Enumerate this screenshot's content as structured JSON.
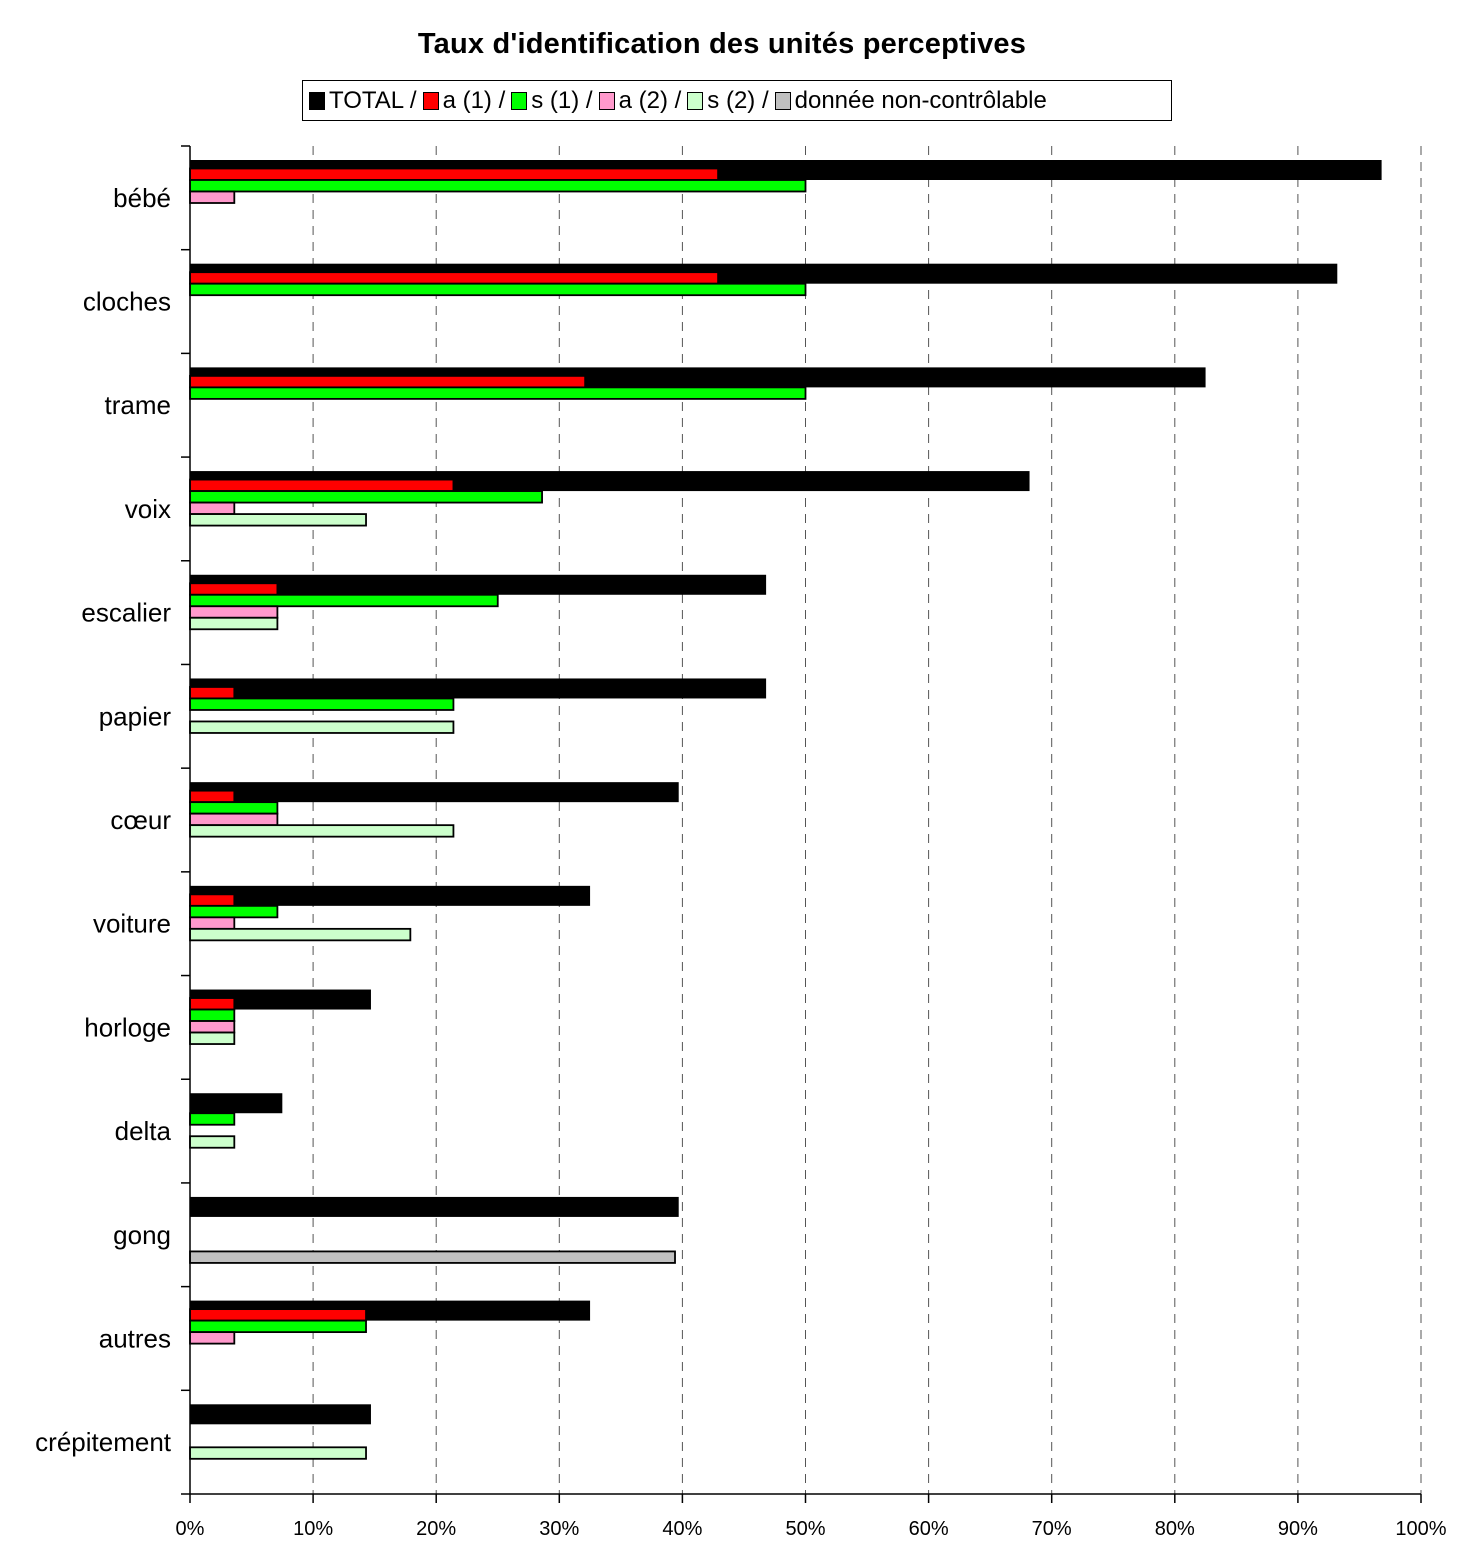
{
  "chart_data": {
    "type": "bar",
    "orientation": "horizontal",
    "title": "Taux d'identification des unités perceptives",
    "legend": {
      "placement": "top",
      "entries": [
        "TOTAL /",
        "a (1) /",
        "s (1) /",
        "a (2) /",
        "s (2) /",
        "donnée non-contrôlable"
      ]
    },
    "categories": [
      "bébé",
      "cloches",
      "trame",
      "voix",
      "escalier",
      "papier",
      "cœur",
      "voiture",
      "horloge",
      "delta",
      "gong",
      "autres",
      "crépitement"
    ],
    "series": [
      {
        "name": "TOTAL",
        "color": "#000000",
        "values": [
          96.8,
          93.2,
          82.5,
          68.2,
          46.8,
          46.8,
          39.7,
          32.5,
          14.7,
          7.5,
          39.7,
          32.5,
          14.7
        ]
      },
      {
        "name": "a (1)",
        "color": "#ff0000",
        "values": [
          42.9,
          42.9,
          32.1,
          21.4,
          7.1,
          3.6,
          3.6,
          3.6,
          3.6,
          0,
          0,
          14.3,
          0
        ]
      },
      {
        "name": "s (1)",
        "color": "#00ff00",
        "values": [
          50.0,
          50.0,
          50.0,
          28.6,
          25.0,
          21.4,
          7.1,
          7.1,
          3.6,
          3.6,
          0,
          14.3,
          0
        ]
      },
      {
        "name": "a (2)",
        "color": "#ff99cc",
        "values": [
          3.6,
          0,
          0,
          3.6,
          7.1,
          0,
          7.1,
          3.6,
          3.6,
          0,
          0,
          3.6,
          0
        ]
      },
      {
        "name": "s (2)",
        "color": "#ccffcc",
        "values": [
          0,
          0,
          0,
          14.3,
          7.1,
          21.4,
          21.4,
          17.9,
          3.6,
          3.6,
          0,
          0,
          14.3
        ]
      },
      {
        "name": "donnée non-contrôlable",
        "color": "#c0c0c0",
        "values": [
          0,
          0,
          0,
          0,
          0,
          0,
          0,
          0,
          0,
          0,
          39.4,
          0,
          0
        ]
      }
    ],
    "xlim": [
      0,
      100
    ],
    "x_ticks": [
      "0%",
      "10%",
      "20%",
      "30%",
      "40%",
      "50%",
      "60%",
      "70%",
      "80%",
      "90%",
      "100%"
    ],
    "grid": "vertical dashed",
    "xlabel": "",
    "ylabel": ""
  }
}
